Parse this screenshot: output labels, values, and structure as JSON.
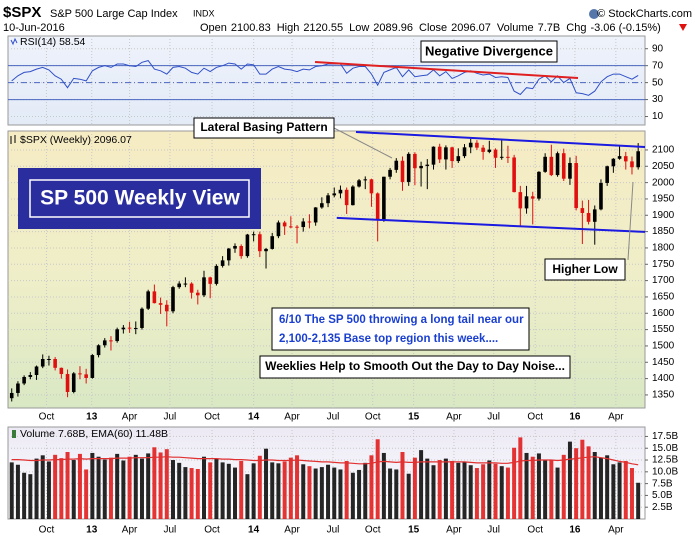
{
  "header": {
    "symbol": "$SPX",
    "name": "S&P 500 Large Cap Index",
    "exchange": "INDX",
    "source": "© StockCharts.com",
    "date": "10-Jun-2016",
    "quote": [
      {
        "label": "Open",
        "value": "2100.83"
      },
      {
        "label": "High",
        "value": "2120.55"
      },
      {
        "label": "Low",
        "value": "2089.96"
      },
      {
        "label": "Close",
        "value": "2096.07"
      },
      {
        "label": "Volume",
        "value": "7.7B"
      },
      {
        "label": "Chg",
        "value": "-3.06 (-0.15%)"
      }
    ]
  },
  "chart_data": [
    {
      "type": "line",
      "label": "RSI(14) 58.54",
      "color": "#3050c8",
      "values": [
        52,
        58,
        62,
        63,
        66,
        68,
        65,
        58,
        54,
        44,
        55,
        54,
        52,
        64,
        68,
        70,
        68,
        72,
        72,
        70,
        69,
        74,
        76,
        66,
        64,
        60,
        68,
        69,
        67,
        62,
        60,
        67,
        63,
        68,
        70,
        73,
        72,
        66,
        72,
        71,
        60,
        60,
        66,
        69,
        66,
        65,
        63,
        66,
        65,
        69,
        70,
        72,
        72,
        72,
        61,
        67,
        69,
        69,
        60,
        47,
        62,
        65,
        68,
        57,
        65,
        57,
        58,
        59,
        65,
        58,
        63,
        55,
        58,
        62,
        64,
        61,
        59,
        60,
        56,
        57,
        56,
        40,
        36,
        44,
        43,
        54,
        58,
        51,
        58,
        50,
        55,
        38,
        37,
        35,
        40,
        51,
        57,
        60,
        60,
        57,
        54,
        58.54
      ],
      "ylim": [
        0,
        105
      ],
      "yticks": [
        90,
        70,
        50,
        30,
        10
      ],
      "levels": [
        70,
        50,
        30
      ],
      "xlim": [
        -0.6,
        102.1
      ],
      "xticks": [
        5.6,
        12.9,
        19,
        25.5,
        32.3,
        39,
        45.2,
        51.8,
        58.2,
        64.8,
        71.3,
        77.7,
        84.4,
        90.8,
        97.4
      ],
      "grid": true,
      "trendlines": [
        {
          "x": [
            48.9,
            91.3
          ],
          "y": [
            74.3,
            55.4
          ],
          "color": "#e02020"
        }
      ],
      "annotations": {
        "divergence": "Negative Divergence"
      }
    },
    {
      "type": "candlestick",
      "label": "$SPX (Weekly) 2096.07",
      "up_color": "#000000",
      "down_color": "#e01010",
      "open": [
        1340,
        1356,
        1385,
        1405,
        1411,
        1437,
        1460,
        1460,
        1433,
        1414,
        1359,
        1416,
        1413,
        1402,
        1472,
        1502,
        1517,
        1515,
        1551,
        1556,
        1553,
        1555,
        1614,
        1667,
        1631,
        1626,
        1606,
        1680,
        1691,
        1691,
        1663,
        1655,
        1710,
        1690,
        1745,
        1762,
        1798,
        1806,
        1775,
        1841,
        1842,
        1790,
        1797,
        1836,
        1878,
        1866,
        1865,
        1864,
        1881,
        1878,
        1924,
        1937,
        1961,
        1967,
        1978,
        1931,
        1988,
        2007,
        2010,
        1967,
        1886,
        2018,
        2039,
        2067,
        2002,
        2088,
        2044,
        2051,
        2055,
        2110,
        2071,
        2108,
        2066,
        2081,
        2108,
        2122,
        2107,
        2094,
        2101,
        2076,
        2079,
        2077,
        1971,
        1921,
        1958,
        1951,
        2033,
        2079,
        2023,
        2090,
        2012,
        2060,
        1922,
        1907,
        1880,
        1918,
        1999,
        2050,
        2073,
        2081,
        2065,
        2047
      ],
      "high": [
        1370,
        1392,
        1410,
        1420,
        1440,
        1474,
        1470,
        1466,
        1434,
        1428,
        1420,
        1438,
        1430,
        1475,
        1505,
        1524,
        1530,
        1556,
        1564,
        1574,
        1575,
        1618,
        1672,
        1688,
        1648,
        1640,
        1684,
        1698,
        1710,
        1695,
        1672,
        1730,
        1712,
        1750,
        1775,
        1800,
        1814,
        1811,
        1843,
        1850,
        1850,
        1800,
        1846,
        1884,
        1883,
        1897,
        1870,
        1891,
        1903,
        1925,
        1955,
        1968,
        1985,
        1991,
        1985,
        1992,
        2011,
        2019,
        2012,
        1970,
        2018,
        2045,
        2075,
        2080,
        2093,
        2093,
        2064,
        2072,
        2111,
        2119,
        2114,
        2110,
        2105,
        2118,
        2134,
        2130,
        2115,
        2128,
        2105,
        2132,
        2113,
        2085,
        1990,
        1990,
        1972,
        2035,
        2090,
        2116,
        2095,
        2104,
        2077,
        2082,
        1945,
        1947,
        1930,
        2010,
        2052,
        2075,
        2111,
        2094,
        2080,
        2121
      ],
      "low": [
        1330,
        1345,
        1380,
        1398,
        1396,
        1432,
        1440,
        1425,
        1400,
        1343,
        1355,
        1398,
        1385,
        1400,
        1465,
        1495,
        1486,
        1510,
        1538,
        1540,
        1536,
        1550,
        1610,
        1630,
        1598,
        1560,
        1600,
        1675,
        1680,
        1645,
        1627,
        1650,
        1646,
        1685,
        1740,
        1746,
        1785,
        1767,
        1770,
        1820,
        1772,
        1737,
        1795,
        1830,
        1840,
        1860,
        1814,
        1850,
        1860,
        1868,
        1920,
        1925,
        1955,
        1952,
        1904,
        1930,
        1985,
        1980,
        1926,
        1820,
        1880,
        2010,
        2030,
        1975,
        1990,
        1992,
        1988,
        1980,
        2040,
        2060,
        2040,
        2045,
        2060,
        2075,
        2090,
        2100,
        2070,
        2090,
        2045,
        2070,
        2060,
        1970,
        1867,
        1905,
        1872,
        1945,
        2030,
        2020,
        2018,
        2005,
        1993,
        1915,
        1812,
        1872,
        1810,
        1915,
        1990,
        2030,
        2070,
        2040,
        2025,
        2040
      ],
      "close": [
        1356,
        1385,
        1405,
        1411,
        1437,
        1460,
        1460,
        1433,
        1414,
        1359,
        1416,
        1413,
        1402,
        1472,
        1502,
        1517,
        1515,
        1551,
        1556,
        1553,
        1555,
        1614,
        1667,
        1631,
        1626,
        1606,
        1680,
        1691,
        1691,
        1663,
        1655,
        1710,
        1690,
        1745,
        1762,
        1798,
        1806,
        1775,
        1841,
        1842,
        1790,
        1797,
        1836,
        1878,
        1866,
        1865,
        1864,
        1881,
        1878,
        1924,
        1937,
        1961,
        1967,
        1978,
        1931,
        1988,
        2007,
        2010,
        1967,
        1886,
        2018,
        2039,
        2067,
        2002,
        2088,
        2044,
        2051,
        2055,
        2110,
        2071,
        2108,
        2066,
        2081,
        2108,
        2122,
        2107,
        2094,
        2101,
        2076,
        2079,
        2077,
        1971,
        1921,
        1958,
        1951,
        2033,
        2079,
        2023,
        2090,
        2012,
        2060,
        1922,
        1907,
        1880,
        1918,
        1999,
        2050,
        2073,
        2081,
        2065,
        2047,
        2096
      ],
      "ylim": [
        1310,
        2158
      ],
      "yticks": [
        1350,
        1400,
        1450,
        1500,
        1550,
        1600,
        1650,
        1700,
        1750,
        1800,
        1850,
        1900,
        1950,
        2000,
        2050,
        2100
      ],
      "xlim": [
        -0.6,
        102.1
      ],
      "xticks": [
        {
          "value": 5.6,
          "label": "Oct"
        },
        {
          "value": 12.9,
          "label": "13"
        },
        {
          "value": 19,
          "label": "Apr"
        },
        {
          "value": 25.5,
          "label": "Jul"
        },
        {
          "value": 32.3,
          "label": "Oct"
        },
        {
          "value": 39,
          "label": "14"
        },
        {
          "value": 45.2,
          "label": "Apr"
        },
        {
          "value": 51.8,
          "label": "Jul"
        },
        {
          "value": 58.2,
          "label": "Oct"
        },
        {
          "value": 64.8,
          "label": "15"
        },
        {
          "value": 71.3,
          "label": "Apr"
        },
        {
          "value": 77.7,
          "label": "Jul"
        },
        {
          "value": 84.4,
          "label": "Oct"
        },
        {
          "value": 90.8,
          "label": "16"
        },
        {
          "value": 97.4,
          "label": "Apr"
        }
      ],
      "grid": true,
      "trendlines": [
        {
          "x": [
            55.5,
            102.1
          ],
          "y": [
            2155,
            2109
          ],
          "color": "#1a1ae0"
        },
        {
          "x": [
            52.4,
            102.1
          ],
          "y": [
            1892,
            1849
          ],
          "color": "#1a1ae0"
        }
      ],
      "annotations": {
        "title": "SP 500 Weekly View",
        "pattern": "Lateral Basing Pattern",
        "higher_low": "Higher Low",
        "note": [
          "6/10  The SP 500 throwing a long tail near our",
          "2,100-2,135 Base top region this week...."
        ],
        "comment": "Weeklies Help to Smooth Out the Day to Day Noise..."
      }
    },
    {
      "type": "bar",
      "label": "Volume 7.68B, EMA(60) 11.48B",
      "ema_color": "#e03030",
      "values": [
        12.0,
        11.5,
        9.8,
        9.5,
        12.8,
        13.5,
        12.2,
        13.6,
        12.9,
        14.2,
        12.5,
        13.8,
        10.5,
        14.0,
        13.2,
        12.6,
        13.0,
        13.8,
        12.4,
        13.2,
        13.6,
        12.8,
        13.9,
        15.2,
        14.1,
        14.8,
        12.5,
        11.9,
        11.0,
        10.8,
        10.6,
        13.2,
        12.0,
        12.8,
        12.0,
        11.7,
        10.9,
        12.3,
        9.5,
        11.8,
        13.4,
        14.9,
        12.0,
        11.8,
        12.2,
        13.0,
        13.5,
        11.6,
        11.2,
        10.7,
        11.0,
        11.5,
        10.9,
        10.5,
        12.3,
        9.8,
        10.4,
        11.9,
        13.5,
        16.9,
        14.0,
        10.7,
        10.5,
        14.2,
        9.6,
        13.0,
        14.6,
        12.8,
        11.4,
        12.5,
        12.8,
        12.3,
        11.9,
        12.0,
        11.4,
        10.8,
        11.6,
        12.4,
        11.7,
        11.2,
        10.9,
        15.1,
        17.3,
        14.0,
        13.2,
        13.9,
        12.4,
        12.5,
        10.9,
        13.6,
        16.4,
        15.0,
        16.8,
        15.4,
        14.2,
        13.0,
        13.5,
        11.6,
        12.0,
        12.3,
        10.8,
        7.68
      ],
      "ema": [
        12.6,
        12.6,
        12.5,
        12.4,
        12.4,
        12.5,
        12.5,
        12.6,
        12.6,
        12.7,
        12.7,
        12.8,
        12.7,
        12.8,
        12.8,
        12.8,
        12.8,
        12.9,
        12.9,
        12.9,
        13.0,
        13.0,
        13.0,
        13.1,
        13.1,
        13.2,
        13.1,
        13.1,
        13.0,
        12.9,
        12.8,
        12.8,
        12.8,
        12.8,
        12.7,
        12.7,
        12.6,
        12.6,
        12.5,
        12.4,
        12.4,
        12.5,
        12.5,
        12.4,
        12.4,
        12.4,
        12.5,
        12.4,
        12.3,
        12.2,
        12.1,
        12.1,
        12.0,
        11.9,
        11.9,
        11.8,
        11.7,
        11.7,
        11.8,
        12.1,
        12.2,
        12.1,
        12.0,
        12.1,
        12.0,
        12.0,
        12.1,
        12.1,
        12.1,
        12.1,
        12.1,
        12.1,
        12.1,
        12.1,
        12.0,
        11.9,
        11.9,
        11.9,
        11.9,
        11.8,
        11.8,
        12.0,
        12.3,
        12.4,
        12.4,
        12.5,
        12.5,
        12.5,
        12.4,
        12.5,
        12.7,
        12.8,
        13.0,
        13.1,
        13.2,
        13.0,
        12.8,
        12.5,
        12.2,
        12.0,
        11.7,
        11.48
      ],
      "ylim": [
        0,
        19.5
      ],
      "yticks": [
        {
          "value": 17.5,
          "label": "17.5B"
        },
        {
          "value": 15,
          "label": "15.0B"
        },
        {
          "value": 12.5,
          "label": "12.5B"
        },
        {
          "value": 10,
          "label": "10.0B"
        },
        {
          "value": 7.5,
          "label": "7.5B"
        },
        {
          "value": 5,
          "label": "5.0B"
        },
        {
          "value": 2.5,
          "label": "2.5B"
        }
      ],
      "xlim": [
        -0.6,
        102.1
      ],
      "xticks": [
        {
          "value": 5.6,
          "label": "Oct"
        },
        {
          "value": 12.9,
          "label": "13"
        },
        {
          "value": 19,
          "label": "Apr"
        },
        {
          "value": 25.5,
          "label": "Jul"
        },
        {
          "value": 32.3,
          "label": "Oct"
        },
        {
          "value": 39,
          "label": "14"
        },
        {
          "value": 45.2,
          "label": "Apr"
        },
        {
          "value": 51.8,
          "label": "Jul"
        },
        {
          "value": 58.2,
          "label": "Oct"
        },
        {
          "value": 64.8,
          "label": "15"
        },
        {
          "value": 71.3,
          "label": "Apr"
        },
        {
          "value": 77.7,
          "label": "Jul"
        },
        {
          "value": 84.4,
          "label": "Oct"
        },
        {
          "value": 90.8,
          "label": "16"
        },
        {
          "value": 97.4,
          "label": "Apr"
        }
      ],
      "grid": true
    }
  ]
}
